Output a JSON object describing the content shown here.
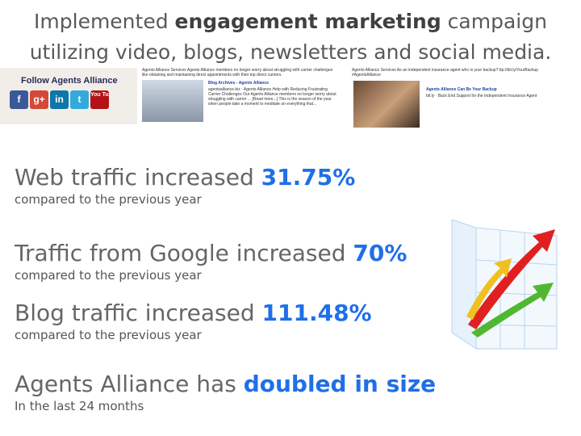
{
  "title": {
    "before": "Implemented ",
    "bold": "engagement marketing",
    "after": " campaign utilizing video, blogs, newsletters and social media."
  },
  "social": {
    "heading": "Follow Agents Alliance",
    "icons": [
      "f",
      "g+",
      "in",
      "t",
      "You Tube"
    ]
  },
  "blog_post": {
    "intro": "Agents Alliance Services Agents Alliance members no longer worry about struggling with carrier challenges like obtaining and maintaining direct appointments with their top direct carriers.",
    "heading": "Blog Archives - Agents Alliance",
    "body": "agentsalliance.biz · Agents Alliance Help with Reducing Frustrating Carrier Challenges Our Agents Alliance members no longer worry about struggling with carrier ... [Read more...] This is the season of the year when people take a moment to meditate on everything that..."
  },
  "video_post": {
    "intro": "Agents Alliance Services As an independent insurance agent who is your backup? ttp://bit.ly/YourBackup #AgentsAlliance",
    "heading": "Agents Alliance Can Be Your Backup",
    "body": "bit.ly · Back End Support for the Independent Insurance Agent"
  },
  "stats": [
    {
      "text": "Web traffic increased ",
      "highlight": "31.75%",
      "note": "compared to the previous year"
    },
    {
      "text": "Traffic from Google increased ",
      "highlight": "70%",
      "note": "compared to the previous year"
    },
    {
      "text": "Blog traffic increased ",
      "highlight": "111.48%",
      "note": "compared to the previous year"
    },
    {
      "text": "Agents Alliance has ",
      "highlight": "doubled in size",
      "note": "In the last 24 months"
    }
  ]
}
